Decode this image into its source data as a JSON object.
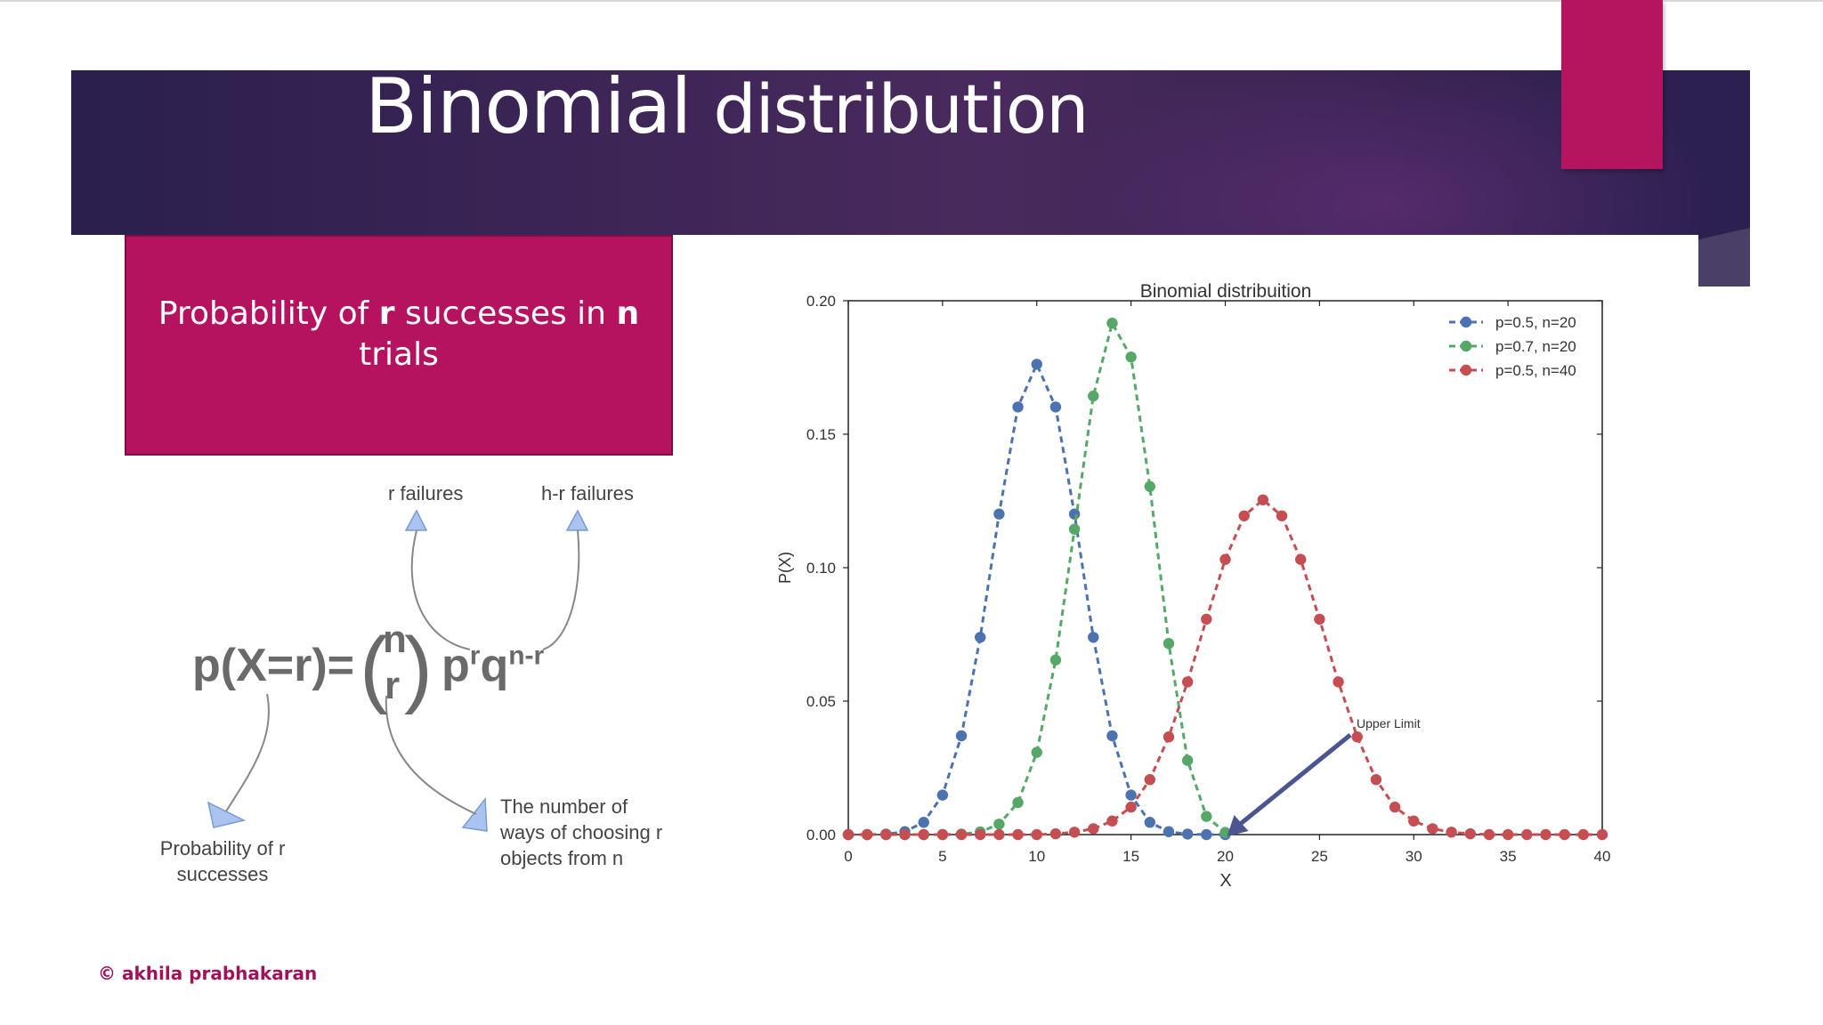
{
  "slide": {
    "title_word1": "Binomial",
    "title_word2": "distribution",
    "box_text_a": "Probability of ",
    "box_text_r": "r",
    "box_text_b": "  successes in ",
    "box_text_n": "n",
    "box_text_c": "trials",
    "copyright": "© akhila prabhakaran",
    "colors": {
      "banner": "#3c2556",
      "accent": "#b5135f",
      "copyright": "#a0125a"
    }
  },
  "diagram": {
    "formula_lhs": "p(X=r)=",
    "binom_top": "n",
    "binom_bottom": "r",
    "p_base": "p",
    "p_exp": "r",
    "q_base": "q",
    "q_exp": "n-r",
    "label_r_failures": "r failures",
    "label_hr_failures": "h-r failures",
    "label_prob_1": "Probability of r",
    "label_prob_2": "successes",
    "label_ways_1": "The number of",
    "label_ways_2": "ways of choosing r",
    "label_ways_3": "objects from n"
  },
  "chart_data": {
    "type": "line",
    "title": "Binomial distribuition",
    "xlabel": "X",
    "ylabel": "P(X)",
    "xlim": [
      0,
      40
    ],
    "ylim": [
      0,
      0.2
    ],
    "x_ticks": [
      "0",
      "5",
      "10",
      "15",
      "20",
      "25",
      "30",
      "35",
      "40"
    ],
    "y_ticks": [
      "0.00",
      "0.05",
      "0.10",
      "0.15",
      "0.20"
    ],
    "legend_position": "top-right",
    "annotation": "Upper Limit",
    "series": [
      {
        "name": "p=0.5, n=20",
        "color": "#4c72b0",
        "x": [
          0,
          1,
          2,
          3,
          4,
          5,
          6,
          7,
          8,
          9,
          10,
          11,
          12,
          13,
          14,
          15,
          16,
          17,
          18,
          19,
          20
        ],
        "y": [
          0.0,
          0.0,
          0.0002,
          0.0011,
          0.0046,
          0.0148,
          0.037,
          0.0739,
          0.1201,
          0.1602,
          0.1762,
          0.1602,
          0.1201,
          0.0739,
          0.037,
          0.0148,
          0.0046,
          0.0011,
          0.0002,
          0.0,
          0.0
        ]
      },
      {
        "name": "p=0.7, n=20",
        "color": "#55a868",
        "x": [
          0,
          1,
          2,
          3,
          4,
          5,
          6,
          7,
          8,
          9,
          10,
          11,
          12,
          13,
          14,
          15,
          16,
          17,
          18,
          19,
          20
        ],
        "y": [
          0.0,
          0.0,
          0.0,
          0.0,
          0.0,
          0.0,
          0.0002,
          0.001,
          0.0039,
          0.012,
          0.0308,
          0.0654,
          0.1144,
          0.1643,
          0.1916,
          0.1789,
          0.1304,
          0.0716,
          0.0278,
          0.0068,
          0.0008
        ]
      },
      {
        "name": "p=0.5, n=40",
        "color": "#c44e52",
        "x": [
          0,
          1,
          2,
          3,
          4,
          5,
          6,
          7,
          8,
          9,
          10,
          11,
          12,
          13,
          14,
          15,
          16,
          17,
          18,
          19,
          20,
          21,
          22,
          23,
          24,
          25,
          26,
          27,
          28,
          29,
          30,
          31,
          32,
          33,
          34,
          35,
          36,
          37,
          38,
          39,
          40
        ],
        "y": [
          0.0,
          0.0,
          0.0,
          0.0,
          0.0,
          0.0,
          0.0,
          0.0,
          0.0,
          0.0,
          0.0,
          0.0003,
          0.0009,
          0.0022,
          0.0051,
          0.0103,
          0.0206,
          0.0366,
          0.0572,
          0.0807,
          0.1031,
          0.1194,
          0.1254,
          0.1194,
          0.1031,
          0.0807,
          0.0572,
          0.0366,
          0.0206,
          0.0103,
          0.0051,
          0.0022,
          0.0009,
          0.0003,
          0.0,
          0.0,
          0.0,
          0.0,
          0.0,
          0.0,
          0.0
        ]
      }
    ]
  }
}
